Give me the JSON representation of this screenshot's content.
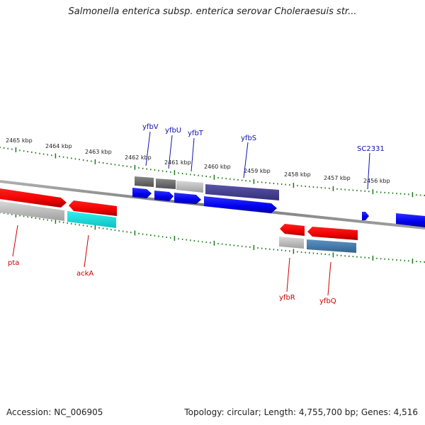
{
  "title": "Salmonella enterica subsp. enterica serovar Choleraesuis str...",
  "footer": {
    "accession": "Accession: NC_006905",
    "summary": "Topology: circular; Length: 4,755,700 bp; Genes: 4,516"
  },
  "colors": {
    "backbone": "#8a8a8a",
    "tick": "#1a7a1a",
    "forward_label": "#1010aa",
    "reverse_label": "#cc0000",
    "scale_label": "#222222"
  },
  "scale_labels": [
    "2465 kbp",
    "2464 kbp",
    "2463 kbp",
    "2462 kbp",
    "2461 kbp",
    "2460 kbp",
    "2459 kbp",
    "2458 kbp",
    "2457 kbp",
    "2456 kbp"
  ],
  "forward_gene_labels": [
    "yfbV",
    "yfbU",
    "yfbT",
    "yfbS",
    "SC2331"
  ],
  "reverse_gene_labels": [
    "pta",
    "ackA",
    "yfbR",
    "yfbQ"
  ],
  "feature_colors": {
    "forward_genes": "#1010ee",
    "reverse_genes": "#ee1010",
    "dark_gray": "#6a6a6a",
    "light_gray": "#bdbdbd",
    "purple": "#4a4496",
    "cyan": "#16e6e6",
    "steel_blue": "#4a7fb0"
  }
}
